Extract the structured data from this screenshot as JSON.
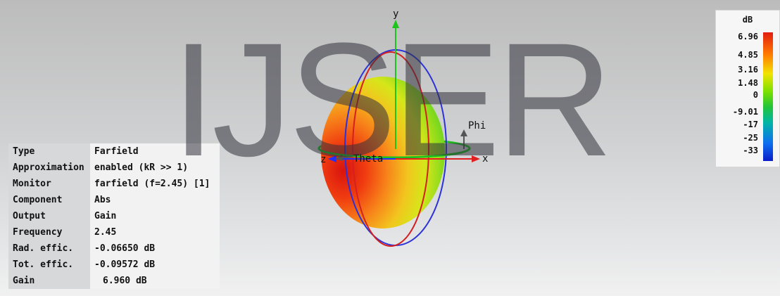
{
  "watermark": "IJSER",
  "axes": {
    "x": "x",
    "y": "y",
    "z": "z",
    "theta": "Theta",
    "phi": "Phi"
  },
  "info_table": [
    {
      "key": "Type",
      "value": "Farfield"
    },
    {
      "key": "Approximation",
      "value": "enabled (kR >> 1)"
    },
    {
      "key": "Monitor",
      "value": "farfield (f=2.45) [1]"
    },
    {
      "key": "Component",
      "value": "Abs"
    },
    {
      "key": "Output",
      "value": "Gain"
    },
    {
      "key": "Frequency",
      "value": "2.45"
    },
    {
      "key": "Rad. effic.",
      "value": "-0.06650 dB"
    },
    {
      "key": "Tot. effic.",
      "value": "-0.09572 dB"
    },
    {
      "key": "Gain",
      "value": "6.960 dB"
    }
  ],
  "legend": {
    "unit": "dB",
    "ticks": [
      "6.96",
      "4.85",
      "3.16",
      "1.48",
      "0",
      "-9.01",
      "-17",
      "-25",
      "-33"
    ]
  },
  "colors": {
    "axis_x": "#e02020",
    "axis_y": "#1cc41c",
    "axis_z": "#2030ff",
    "ring_blue": "#2b33d8",
    "ring_red": "#d42020",
    "ring_green": "#1fbf1f"
  }
}
